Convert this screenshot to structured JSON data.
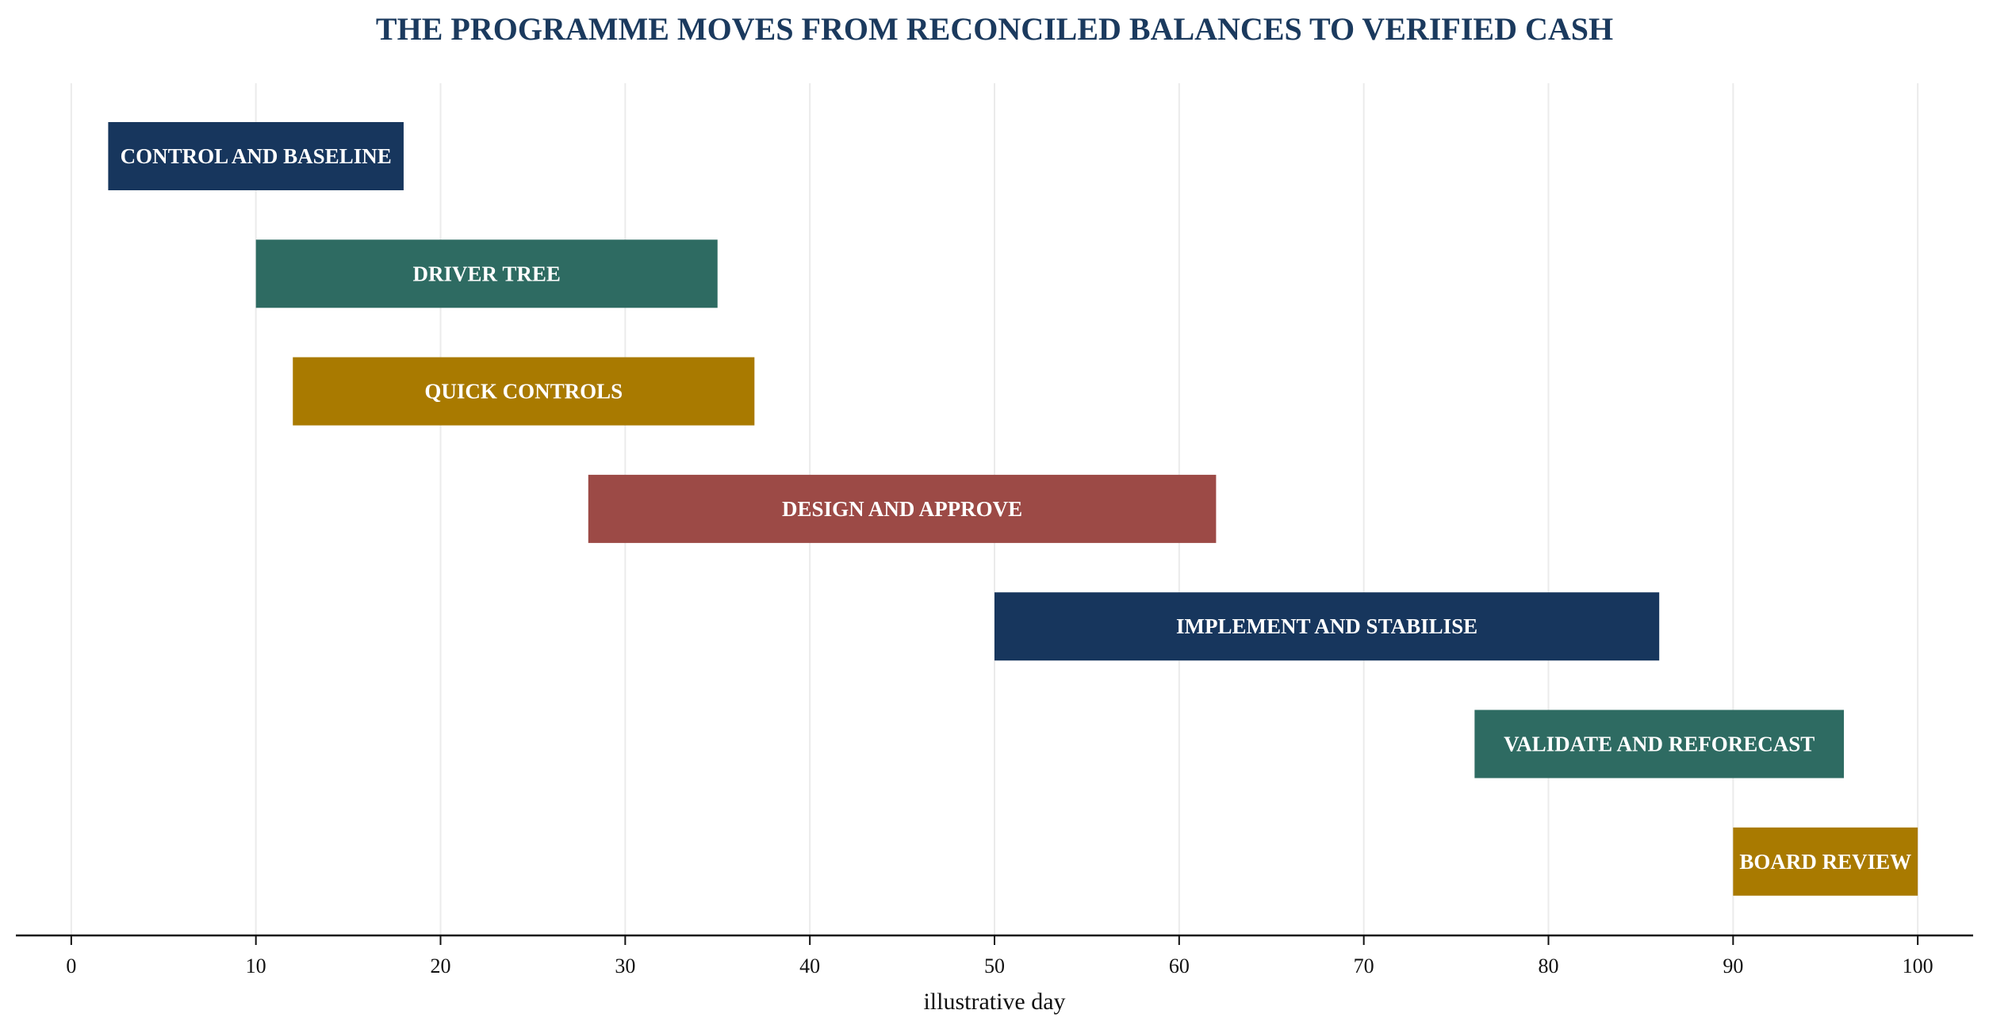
{
  "chart_data": {
    "type": "gantt",
    "title": "THE PROGRAMME MOVES FROM RECONCILED BALANCES TO VERIFIED CASH",
    "xlabel": "illustrative day",
    "ylabel": "",
    "xlim": [
      -3,
      103
    ],
    "xticks": [
      0,
      10,
      20,
      30,
      40,
      50,
      60,
      70,
      80,
      90,
      100
    ],
    "grid": "vertical",
    "colors": {
      "title": "#1b3a5e",
      "navy": "#17365d",
      "teal": "#2e6b62",
      "gold": "#a97a00",
      "red": "#9c4a46",
      "grid": "#ebebeb",
      "axis": "#111111"
    },
    "tasks": [
      {
        "label": "CONTROL AND BASELINE",
        "start": 2,
        "end": 18,
        "color": "#17365d"
      },
      {
        "label": "DRIVER TREE",
        "start": 10,
        "end": 35,
        "color": "#2e6b62"
      },
      {
        "label": "QUICK CONTROLS",
        "start": 12,
        "end": 37,
        "color": "#a97a00"
      },
      {
        "label": "DESIGN AND APPROVE",
        "start": 28,
        "end": 62,
        "color": "#9c4a46"
      },
      {
        "label": "IMPLEMENT AND STABILISE",
        "start": 50,
        "end": 86,
        "color": "#17365d"
      },
      {
        "label": "VALIDATE AND REFORECAST",
        "start": 76,
        "end": 96,
        "color": "#2e6b62"
      },
      {
        "label": "BOARD REVIEW",
        "start": 90,
        "end": 100,
        "color": "#a97a00"
      }
    ]
  }
}
